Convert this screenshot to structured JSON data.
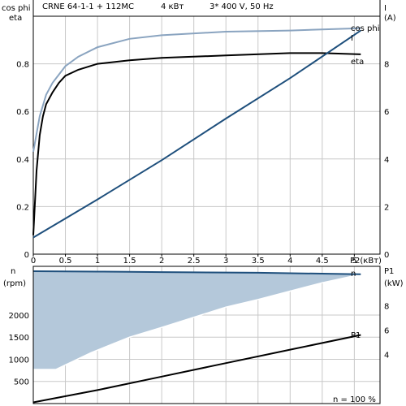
{
  "header": {
    "pump": "CRNE 64-1-1 + 112MC",
    "power": "4 кВт",
    "supply": "3* 400 V, 50 Hz"
  },
  "colors": {
    "eta": "#000000",
    "cosphi": "#8aa4c0",
    "current": "#1e4f7c",
    "speed": "#1e4f7c",
    "speed_fill": "#b4c8da",
    "p1": "#000000",
    "grid": "#c8c8c8"
  },
  "chart_data": [
    {
      "type": "line",
      "x_label": "P2(кВт)",
      "x_range": [
        0,
        5.4
      ],
      "x_ticks": [
        "0",
        "0.5",
        "1",
        "1.5",
        "2",
        "2.5",
        "3",
        "3.5",
        "4",
        "4.5",
        "5"
      ],
      "y_left_label_1": "cos phi",
      "y_left_label_2": "eta",
      "y_left_range": [
        0,
        1.0
      ],
      "y_left_ticks": [
        "0",
        "0.2",
        "0.4",
        "0.6",
        "0.8"
      ],
      "y_right_label_1": "I",
      "y_right_label_2": "(A)",
      "y_right_range": [
        0,
        10
      ],
      "y_right_ticks": [
        "0",
        "2",
        "4",
        "6",
        "8"
      ],
      "grid": true,
      "series": [
        {
          "name": "cos phi",
          "axis": "left",
          "x": [
            0,
            0.1,
            0.2,
            0.3,
            0.5,
            0.7,
            1.0,
            1.5,
            2.0,
            3.0,
            4.0,
            5.1
          ],
          "y": [
            0.43,
            0.58,
            0.67,
            0.72,
            0.79,
            0.83,
            0.87,
            0.905,
            0.92,
            0.935,
            0.94,
            0.95
          ]
        },
        {
          "name": "eta",
          "axis": "left",
          "x": [
            0,
            0.05,
            0.1,
            0.15,
            0.2,
            0.3,
            0.4,
            0.5,
            0.7,
            1.0,
            1.5,
            2.0,
            3.0,
            4.0,
            4.5,
            5.1
          ],
          "y": [
            0.08,
            0.35,
            0.5,
            0.58,
            0.63,
            0.68,
            0.72,
            0.75,
            0.775,
            0.8,
            0.815,
            0.825,
            0.835,
            0.845,
            0.845,
            0.84
          ]
        },
        {
          "name": "I",
          "axis": "right",
          "x": [
            0,
            0.5,
            1.0,
            2.0,
            3.0,
            4.0,
            5.1
          ],
          "y": [
            0.7,
            1.5,
            2.3,
            3.95,
            5.7,
            7.4,
            9.4
          ]
        }
      ],
      "labels": [
        "cos phi",
        "I",
        "eta"
      ]
    },
    {
      "type": "area",
      "x_label": "n",
      "x_end_label": "n  = 100 %",
      "y_left_label_1": "n",
      "y_left_label_2": "(rpm)",
      "y_left_range": [
        0,
        3100
      ],
      "y_left_ticks": [
        "500",
        "1000",
        "1500",
        "2000"
      ],
      "y_right_label_1": "P1",
      "y_right_label_2": "(kW)",
      "y_right_range": [
        0,
        11.2
      ],
      "y_right_ticks": [
        "4",
        "6",
        "8"
      ],
      "grid": true,
      "series": [
        {
          "name": "n",
          "axis": "left",
          "x": [
            0,
            0.5,
            1.0,
            1.5,
            2.0,
            2.5,
            3.0,
            3.5,
            4.0,
            4.5,
            5.1
          ],
          "y": [
            2990,
            2985,
            2980,
            2975,
            2970,
            2965,
            2960,
            2955,
            2945,
            2935,
            2920
          ],
          "fill_lower": [
            770,
            770,
            1150,
            1500,
            1720,
            1950,
            2180,
            2350,
            2540,
            2730,
            2920
          ],
          "fill_lower_x": [
            0,
            0.35,
            0.9,
            1.5,
            2.0,
            2.5,
            3.0,
            3.5,
            4.0,
            4.5,
            5.1
          ]
        },
        {
          "name": "P1",
          "axis": "right",
          "x": [
            0,
            1.0,
            2.0,
            3.0,
            4.0,
            5.1
          ],
          "y": [
            0.1,
            1.1,
            2.2,
            3.3,
            4.4,
            5.6
          ]
        }
      ],
      "labels": [
        "n",
        "P1"
      ]
    }
  ]
}
